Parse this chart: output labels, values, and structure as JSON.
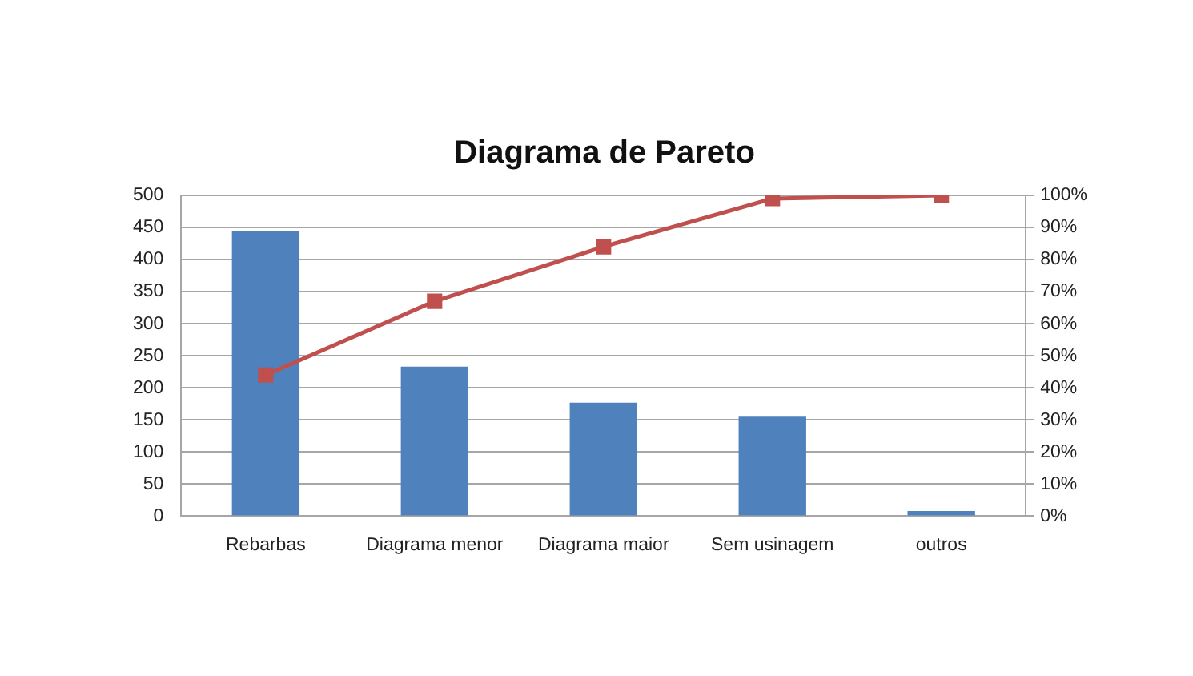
{
  "chart_data": {
    "type": "bar",
    "title": "Diagrama de Pareto",
    "categories": [
      "Rebarbas",
      "Diagrama menor",
      "Diagrama maior",
      "Sem usinagem",
      "outros"
    ],
    "series": [
      {
        "color": "#4f81bd",
        "values": [
          445,
          233,
          177,
          155,
          8
        ]
      },
      {
        "type": "line",
        "axis": "y2",
        "color": "#c0504d",
        "values": [
          44,
          67,
          84,
          99,
          100
        ]
      }
    ],
    "ylim": [
      0,
      500
    ],
    "yticks": [
      0,
      50,
      100,
      150,
      200,
      250,
      300,
      350,
      400,
      450,
      500
    ],
    "y2lim": [
      0,
      100
    ],
    "y2ticks": [
      {
        "value": 0,
        "label": "0%"
      },
      {
        "value": 10,
        "label": "10%"
      },
      {
        "value": 20,
        "label": "20%"
      },
      {
        "value": 30,
        "label": "30%"
      },
      {
        "value": 40,
        "label": "40%"
      },
      {
        "value": 50,
        "label": "50%"
      },
      {
        "value": 60,
        "label": "60%"
      },
      {
        "value": 70,
        "label": "70%"
      },
      {
        "value": 80,
        "label": "80%"
      },
      {
        "value": 90,
        "label": "90%"
      },
      {
        "value": 100,
        "label": "100%"
      }
    ],
    "grid": "y",
    "marker": "square"
  }
}
